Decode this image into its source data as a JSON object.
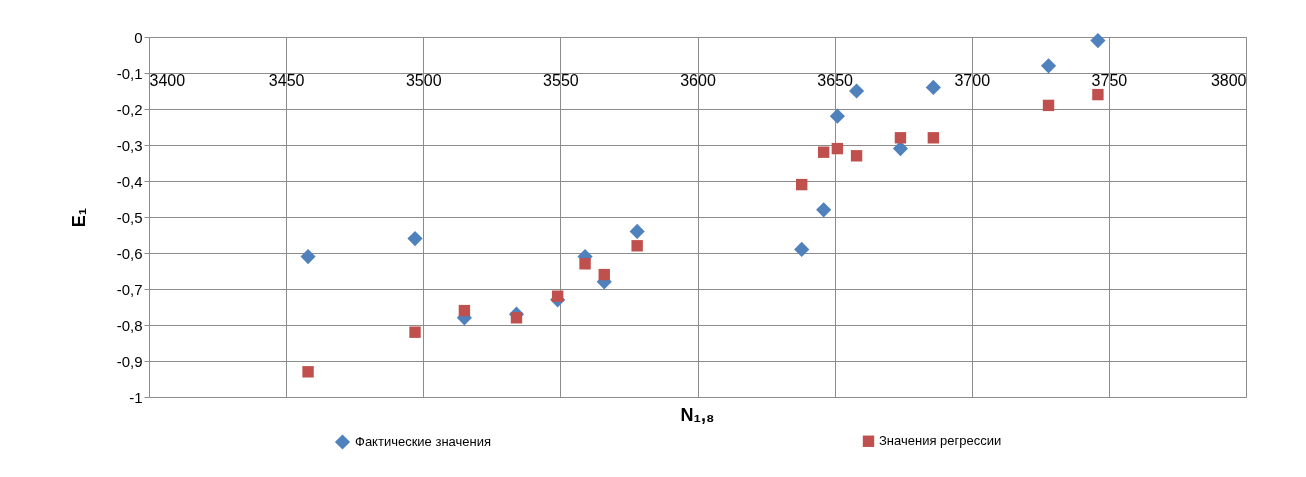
{
  "chart_data": {
    "type": "scatter",
    "xlabel": "N₁,₈",
    "ylabel": "E₁",
    "xlim": [
      3400,
      3800
    ],
    "xticks": [
      3400,
      3450,
      3500,
      3550,
      3600,
      3650,
      3700,
      3750,
      3800
    ],
    "ylim": [
      -1,
      0
    ],
    "yticks": [
      {
        "value": -1,
        "label": "-1"
      },
      {
        "value": -0.9,
        "label": "-0,9"
      },
      {
        "value": -0.8,
        "label": "-0,8"
      },
      {
        "value": -0.7,
        "label": "-0,7"
      },
      {
        "value": -0.6,
        "label": "-0,6"
      },
      {
        "value": -0.5,
        "label": "-0,5"
      },
      {
        "value": -0.4,
        "label": "-0,4"
      },
      {
        "value": -0.3,
        "label": "-0,3"
      },
      {
        "value": -0.2,
        "label": "-0,2"
      },
      {
        "value": -0.1,
        "label": "-0,1"
      },
      {
        "value": 0,
        "label": "0"
      }
    ],
    "grid": true,
    "legend": "bottom",
    "x": [
      3458,
      3497,
      3515,
      3534,
      3549,
      3559,
      3566,
      3578,
      3638,
      3646,
      3651,
      3658,
      3674,
      3686,
      3728,
      3746
    ],
    "series": [
      {
        "name": "Фактические значения",
        "color": "#4f81bd",
        "marker": "diamond",
        "values": [
          -0.61,
          -0.56,
          -0.78,
          -0.77,
          -0.73,
          -0.61,
          -0.68,
          -0.54,
          -0.59,
          -0.48,
          -0.22,
          -0.15,
          -0.31,
          -0.14,
          -0.08,
          -0.01
        ]
      },
      {
        "name": "Значения регрессии",
        "color": "#c0504d",
        "marker": "square",
        "values": [
          -0.93,
          -0.82,
          -0.76,
          -0.78,
          -0.72,
          -0.63,
          -0.66,
          -0.58,
          -0.41,
          -0.32,
          -0.31,
          -0.33,
          -0.28,
          -0.28,
          -0.19,
          -0.16
        ]
      }
    ]
  }
}
